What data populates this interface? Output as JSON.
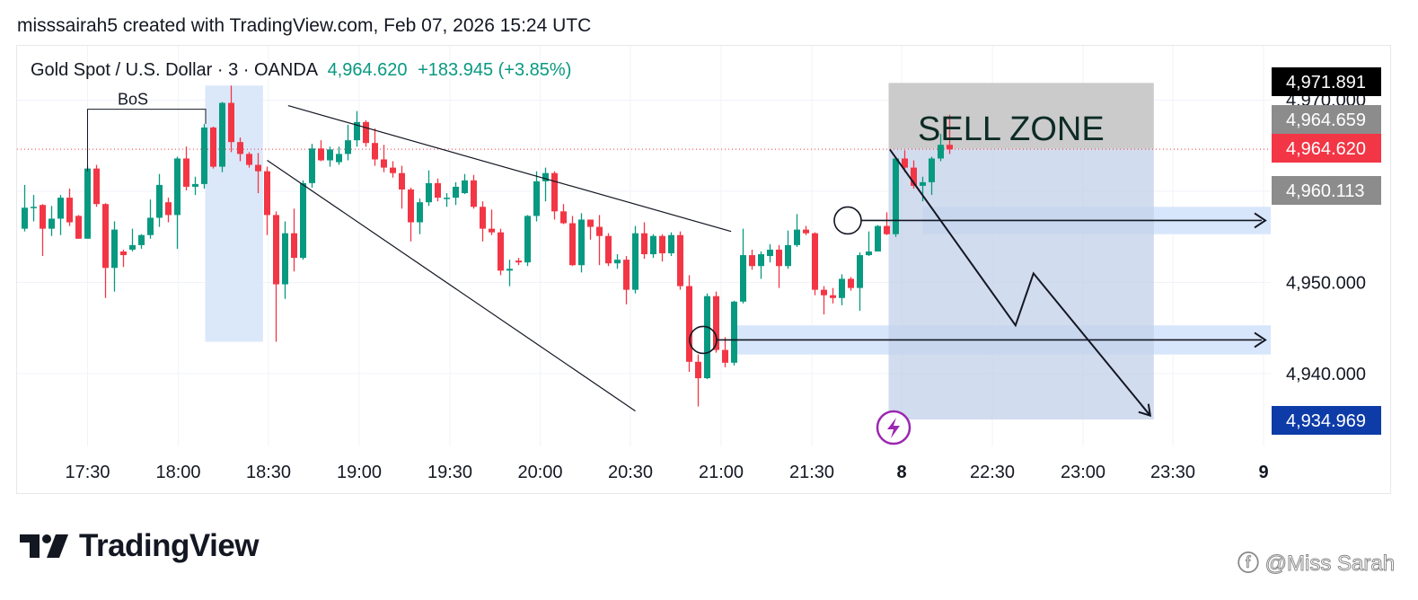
{
  "header": {
    "text": "misssairah5 created with TradingView.com, Feb 07, 2026 15:24 UTC"
  },
  "legend": {
    "symbol": "Gold Spot / U.S. Dollar · 3 · OANDA",
    "last": "4,964.620",
    "change": "+183.945 (+3.85%)"
  },
  "brand": {
    "name": "TradingView"
  },
  "watermark": {
    "text": "ⓕ @Miss Sarah"
  },
  "colors": {
    "up": "#089981",
    "down": "#f23645",
    "zone_fill": "#c3d0e9",
    "sell_zone_fill": "#c8c8c8",
    "level_fill": "#d6e5fb"
  },
  "chart_data": {
    "type": "candlestick",
    "title": "Gold Spot / U.S. Dollar · 3 · OANDA",
    "x_ticks": [
      "17:30",
      "18:00",
      "18:30",
      "19:00",
      "19:30",
      "20:00",
      "20:30",
      "21:00",
      "21:30",
      "8",
      "22:30",
      "23:00",
      "23:30",
      "9"
    ],
    "y_ticks": [
      "4,950.000",
      "4,940.000"
    ],
    "ylim": [
      4930.8,
      4972.8
    ],
    "price_labels": [
      {
        "value": 4971.891,
        "text": "4,971.891",
        "bg": "#000000",
        "fg": "#ffffff"
      },
      {
        "value": 4970.0,
        "text": "4,970.000",
        "bg": "none",
        "fg": "#131722"
      },
      {
        "value": 4964.659,
        "text": "4,964.659",
        "bg": "#8c8c8c",
        "fg": "#ffffff"
      },
      {
        "value": 4964.62,
        "text": "4,964.620",
        "bg": "#f23645",
        "fg": "#ffffff"
      },
      {
        "value": 4960.113,
        "text": "4,960.113",
        "bg": "#8c8c8c",
        "fg": "#ffffff"
      },
      {
        "value": 4934.969,
        "text": "4,934.969",
        "bg": "#0d3ba8",
        "fg": "#ffffff"
      }
    ],
    "annotations": {
      "bos_label": "BoS",
      "sell_zone_label": "SELL ZONE",
      "sell_zone": {
        "from": "22:00",
        "to": "23:25",
        "low": 4934.97,
        "high": 4971.89,
        "upper_band_low": 4964.66
      },
      "support_levels": [
        {
          "price": 4956.8,
          "band": [
            4955.3,
            4958.3
          ]
        },
        {
          "price": 4943.7,
          "band": [
            4942.1,
            4945.3
          ]
        }
      ],
      "wedge_lines": [
        {
          "from": [
            "18:37",
            4969.4
          ],
          "to": [
            "21:05",
            4955.6
          ]
        },
        {
          "from": [
            "18:30",
            4963.4
          ],
          "to": [
            "20:33",
            4935.9
          ]
        }
      ],
      "bos_box": {
        "from": "18:09",
        "to": "18:28",
        "low": 4943.5,
        "high": 4971.6
      },
      "projection_path": [
        [
          "21:58",
          4964.6
        ],
        [
          "22:40",
          4945.3
        ],
        [
          "22:46",
          4951.0
        ],
        [
          "23:25",
          4935.4
        ]
      ]
    },
    "candles": [
      {
        "t": "17:09",
        "o": 4955.9,
        "h": 4960.7,
        "l": 4955.6,
        "c": 4958.2
      },
      {
        "t": "17:12",
        "o": 4958.2,
        "h": 4959.6,
        "l": 4956.7,
        "c": 4958.3
      },
      {
        "t": "17:15",
        "o": 4958.5,
        "h": 4958.6,
        "l": 4952.9,
        "c": 4955.9
      },
      {
        "t": "17:18",
        "o": 4955.9,
        "h": 4958.4,
        "l": 4955.1,
        "c": 4957.0
      },
      {
        "t": "17:21",
        "o": 4957.0,
        "h": 4959.6,
        "l": 4955.2,
        "c": 4959.3
      },
      {
        "t": "17:24",
        "o": 4959.3,
        "h": 4960.3,
        "l": 4956.2,
        "c": 4956.6
      },
      {
        "t": "17:27",
        "o": 4957.3,
        "h": 4957.4,
        "l": 4954.8,
        "c": 4954.8
      },
      {
        "t": "17:30",
        "o": 4954.8,
        "h": 4962.8,
        "l": 4954.8,
        "c": 4962.5
      },
      {
        "t": "17:33",
        "o": 4962.5,
        "h": 4962.9,
        "l": 4958.3,
        "c": 4958.6
      },
      {
        "t": "17:36",
        "o": 4958.6,
        "h": 4958.7,
        "l": 4948.3,
        "c": 4951.6
      },
      {
        "t": "17:39",
        "o": 4951.6,
        "h": 4956.7,
        "l": 4949.0,
        "c": 4955.8
      },
      {
        "t": "17:42",
        "o": 4953.4,
        "h": 4953.6,
        "l": 4951.7,
        "c": 4953.0
      },
      {
        "t": "17:45",
        "o": 4953.6,
        "h": 4955.9,
        "l": 4953.4,
        "c": 4954.1
      },
      {
        "t": "17:48",
        "o": 4954.1,
        "h": 4955.3,
        "l": 4953.7,
        "c": 4955.2
      },
      {
        "t": "17:51",
        "o": 4955.2,
        "h": 4959.1,
        "l": 4954.8,
        "c": 4957.1
      },
      {
        "t": "17:54",
        "o": 4957.1,
        "h": 4961.9,
        "l": 4956.1,
        "c": 4960.7
      },
      {
        "t": "17:57",
        "o": 4958.8,
        "h": 4959.3,
        "l": 4956.6,
        "c": 4957.4
      },
      {
        "t": "18:00",
        "o": 4957.4,
        "h": 4963.8,
        "l": 4953.7,
        "c": 4963.6
      },
      {
        "t": "18:03",
        "o": 4963.6,
        "h": 4964.9,
        "l": 4960.1,
        "c": 4960.5
      },
      {
        "t": "18:06",
        "o": 4960.5,
        "h": 4961.6,
        "l": 4959.6,
        "c": 4960.8
      },
      {
        "t": "18:09",
        "o": 4960.8,
        "h": 4967.4,
        "l": 4960.3,
        "c": 4967.0
      },
      {
        "t": "18:12",
        "o": 4967.0,
        "h": 4967.1,
        "l": 4962.5,
        "c": 4962.7
      },
      {
        "t": "18:15",
        "o": 4962.7,
        "h": 4969.8,
        "l": 4962.1,
        "c": 4969.7
      },
      {
        "t": "18:18",
        "o": 4969.7,
        "h": 4971.6,
        "l": 4964.3,
        "c": 4965.4
      },
      {
        "t": "18:21",
        "o": 4965.4,
        "h": 4965.9,
        "l": 4963.3,
        "c": 4964.1
      },
      {
        "t": "18:24",
        "o": 4964.1,
        "h": 4964.3,
        "l": 4962.6,
        "c": 4962.9
      },
      {
        "t": "18:27",
        "o": 4962.9,
        "h": 4964.2,
        "l": 4959.8,
        "c": 4962.2
      },
      {
        "t": "18:30",
        "o": 4962.2,
        "h": 4962.7,
        "l": 4955.2,
        "c": 4957.4
      },
      {
        "t": "18:33",
        "o": 4957.4,
        "h": 4957.8,
        "l": 4943.5,
        "c": 4949.8
      },
      {
        "t": "18:36",
        "o": 4949.8,
        "h": 4956.7,
        "l": 4948.2,
        "c": 4955.4
      },
      {
        "t": "18:39",
        "o": 4955.4,
        "h": 4958.1,
        "l": 4951.2,
        "c": 4952.7
      },
      {
        "t": "18:42",
        "o": 4952.7,
        "h": 4961.2,
        "l": 4952.5,
        "c": 4960.9
      },
      {
        "t": "18:45",
        "o": 4960.9,
        "h": 4965.2,
        "l": 4960.4,
        "c": 4964.7
      },
      {
        "t": "18:48",
        "o": 4964.7,
        "h": 4965.6,
        "l": 4963.3,
        "c": 4963.4
      },
      {
        "t": "18:51",
        "o": 4963.4,
        "h": 4964.9,
        "l": 4962.7,
        "c": 4964.6
      },
      {
        "t": "18:54",
        "o": 4963.2,
        "h": 4964.9,
        "l": 4962.9,
        "c": 4964.1
      },
      {
        "t": "18:57",
        "o": 4964.1,
        "h": 4967.3,
        "l": 4963.4,
        "c": 4965.6
      },
      {
        "t": "19:00",
        "o": 4965.6,
        "h": 4968.8,
        "l": 4964.9,
        "c": 4967.6
      },
      {
        "t": "19:03",
        "o": 4967.6,
        "h": 4967.8,
        "l": 4964.9,
        "c": 4965.3
      },
      {
        "t": "19:06",
        "o": 4965.3,
        "h": 4966.9,
        "l": 4962.8,
        "c": 4963.5
      },
      {
        "t": "19:09",
        "o": 4963.5,
        "h": 4965.1,
        "l": 4962.1,
        "c": 4962.6
      },
      {
        "t": "19:12",
        "o": 4962.6,
        "h": 4963.3,
        "l": 4961.5,
        "c": 4962.0
      },
      {
        "t": "19:15",
        "o": 4962.0,
        "h": 4962.8,
        "l": 4958.1,
        "c": 4960.2
      },
      {
        "t": "19:18",
        "o": 4960.2,
        "h": 4960.4,
        "l": 4954.5,
        "c": 4956.6
      },
      {
        "t": "19:21",
        "o": 4956.6,
        "h": 4959.2,
        "l": 4955.3,
        "c": 4958.8
      },
      {
        "t": "19:24",
        "o": 4958.8,
        "h": 4962.3,
        "l": 4958.4,
        "c": 4960.9
      },
      {
        "t": "19:27",
        "o": 4960.9,
        "h": 4961.4,
        "l": 4958.9,
        "c": 4959.3
      },
      {
        "t": "19:30",
        "o": 4959.3,
        "h": 4959.8,
        "l": 4958.3,
        "c": 4959.3
      },
      {
        "t": "19:33",
        "o": 4959.3,
        "h": 4961.0,
        "l": 4958.5,
        "c": 4960.5
      },
      {
        "t": "19:36",
        "o": 4959.8,
        "h": 4961.9,
        "l": 4959.7,
        "c": 4961.2
      },
      {
        "t": "19:39",
        "o": 4961.2,
        "h": 4961.8,
        "l": 4958.1,
        "c": 4958.3
      },
      {
        "t": "19:42",
        "o": 4958.3,
        "h": 4958.9,
        "l": 4954.5,
        "c": 4955.9
      },
      {
        "t": "19:45",
        "o": 4955.9,
        "h": 4958.0,
        "l": 4955.2,
        "c": 4955.5
      },
      {
        "t": "19:48",
        "o": 4955.5,
        "h": 4955.9,
        "l": 4950.8,
        "c": 4951.3
      },
      {
        "t": "19:51",
        "o": 4951.3,
        "h": 4952.5,
        "l": 4949.6,
        "c": 4951.5
      },
      {
        "t": "19:54",
        "o": 4952.4,
        "h": 4952.7,
        "l": 4951.9,
        "c": 4952.2
      },
      {
        "t": "19:57",
        "o": 4952.2,
        "h": 4957.4,
        "l": 4951.8,
        "c": 4957.3
      },
      {
        "t": "20:00",
        "o": 4957.3,
        "h": 4962.2,
        "l": 4956.7,
        "c": 4961.1
      },
      {
        "t": "20:03",
        "o": 4961.1,
        "h": 4962.6,
        "l": 4958.9,
        "c": 4962.0
      },
      {
        "t": "20:06",
        "o": 4962.0,
        "h": 4962.2,
        "l": 4956.9,
        "c": 4957.8
      },
      {
        "t": "20:09",
        "o": 4957.8,
        "h": 4958.6,
        "l": 4956.4,
        "c": 4956.5
      },
      {
        "t": "20:12",
        "o": 4956.5,
        "h": 4957.3,
        "l": 4951.8,
        "c": 4951.9
      },
      {
        "t": "20:15",
        "o": 4951.9,
        "h": 4957.6,
        "l": 4951.1,
        "c": 4956.9
      },
      {
        "t": "20:18",
        "o": 4956.9,
        "h": 4956.9,
        "l": 4954.7,
        "c": 4956.1
      },
      {
        "t": "20:21",
        "o": 4956.1,
        "h": 4957.4,
        "l": 4951.9,
        "c": 4955.1
      },
      {
        "t": "20:24",
        "o": 4955.1,
        "h": 4955.4,
        "l": 4951.8,
        "c": 4952.1
      },
      {
        "t": "20:27",
        "o": 4952.1,
        "h": 4953.1,
        "l": 4951.5,
        "c": 4952.5
      },
      {
        "t": "20:30",
        "o": 4952.5,
        "h": 4952.9,
        "l": 4947.6,
        "c": 4949.2
      },
      {
        "t": "20:33",
        "o": 4949.2,
        "h": 4956.2,
        "l": 4948.8,
        "c": 4955.4
      },
      {
        "t": "20:36",
        "o": 4955.4,
        "h": 4956.6,
        "l": 4952.6,
        "c": 4953.1
      },
      {
        "t": "20:39",
        "o": 4953.1,
        "h": 4955.3,
        "l": 4952.7,
        "c": 4955.1
      },
      {
        "t": "20:42",
        "o": 4955.1,
        "h": 4955.3,
        "l": 4952.3,
        "c": 4953.2
      },
      {
        "t": "20:45",
        "o": 4953.2,
        "h": 4955.5,
        "l": 4952.9,
        "c": 4955.2
      },
      {
        "t": "20:48",
        "o": 4955.2,
        "h": 4955.6,
        "l": 4949.2,
        "c": 4949.6
      },
      {
        "t": "20:51",
        "o": 4949.6,
        "h": 4950.8,
        "l": 4940.2,
        "c": 4941.3
      },
      {
        "t": "20:54",
        "o": 4941.3,
        "h": 4942.1,
        "l": 4936.4,
        "c": 4939.5
      },
      {
        "t": "20:57",
        "o": 4939.5,
        "h": 4948.8,
        "l": 4939.4,
        "c": 4948.5
      },
      {
        "t": "21:00",
        "o": 4948.5,
        "h": 4949.0,
        "l": 4942.3,
        "c": 4942.6
      },
      {
        "t": "21:03",
        "o": 4942.6,
        "h": 4944.0,
        "l": 4940.7,
        "c": 4941.2
      },
      {
        "t": "21:06",
        "o": 4941.2,
        "h": 4948.0,
        "l": 4940.9,
        "c": 4947.9
      },
      {
        "t": "21:09",
        "o": 4947.9,
        "h": 4955.9,
        "l": 4947.7,
        "c": 4953.0
      },
      {
        "t": "21:12",
        "o": 4953.0,
        "h": 4953.6,
        "l": 4951.4,
        "c": 4951.8
      },
      {
        "t": "21:15",
        "o": 4951.8,
        "h": 4953.4,
        "l": 4950.4,
        "c": 4953.1
      },
      {
        "t": "21:18",
        "o": 4952.9,
        "h": 4954.2,
        "l": 4952.2,
        "c": 4953.6
      },
      {
        "t": "21:21",
        "o": 4953.6,
        "h": 4954.1,
        "l": 4949.4,
        "c": 4951.8
      },
      {
        "t": "21:24",
        "o": 4951.8,
        "h": 4955.7,
        "l": 4951.5,
        "c": 4954.1
      },
      {
        "t": "21:27",
        "o": 4954.1,
        "h": 4957.5,
        "l": 4953.9,
        "c": 4955.8
      },
      {
        "t": "21:30",
        "o": 4955.8,
        "h": 4956.2,
        "l": 4955.2,
        "c": 4955.4
      },
      {
        "t": "21:33",
        "o": 4955.4,
        "h": 4955.5,
        "l": 4948.6,
        "c": 4949.2
      },
      {
        "t": "21:36",
        "o": 4949.2,
        "h": 4949.6,
        "l": 4946.5,
        "c": 4948.6
      },
      {
        "t": "21:39",
        "o": 4948.6,
        "h": 4949.4,
        "l": 4947.7,
        "c": 4948.3
      },
      {
        "t": "21:42",
        "o": 4948.3,
        "h": 4950.9,
        "l": 4947.5,
        "c": 4950.4
      },
      {
        "t": "21:45",
        "o": 4950.4,
        "h": 4950.6,
        "l": 4949.1,
        "c": 4949.4
      },
      {
        "t": "21:48",
        "o": 4949.4,
        "h": 4953.3,
        "l": 4946.9,
        "c": 4953.0
      },
      {
        "t": "21:51",
        "o": 4953.0,
        "h": 4955.6,
        "l": 4952.9,
        "c": 4953.4
      },
      {
        "t": "21:54",
        "o": 4953.4,
        "h": 4956.3,
        "l": 4953.4,
        "c": 4956.2
      },
      {
        "t": "21:57",
        "o": 4956.2,
        "h": 4957.7,
        "l": 4955.2,
        "c": 4955.3
      },
      {
        "t": "22:00",
        "o": 4955.3,
        "h": 4963.8,
        "l": 4955.0,
        "c": 4963.6
      },
      {
        "t": "22:03",
        "o": 4963.6,
        "h": 4964.5,
        "l": 4962.1,
        "c": 4962.6
      },
      {
        "t": "22:06",
        "o": 4962.6,
        "h": 4963.4,
        "l": 4960.3,
        "c": 4960.6
      },
      {
        "t": "22:09",
        "o": 4960.6,
        "h": 4961.6,
        "l": 4958.9,
        "c": 4961.0
      },
      {
        "t": "22:12",
        "o": 4961.0,
        "h": 4963.8,
        "l": 4959.6,
        "c": 4963.6
      },
      {
        "t": "22:15",
        "o": 4963.6,
        "h": 4966.3,
        "l": 4963.3,
        "c": 4965.1
      },
      {
        "t": "22:18",
        "o": 4965.1,
        "h": 4968.4,
        "l": 4964.1,
        "c": 4964.6
      }
    ]
  }
}
